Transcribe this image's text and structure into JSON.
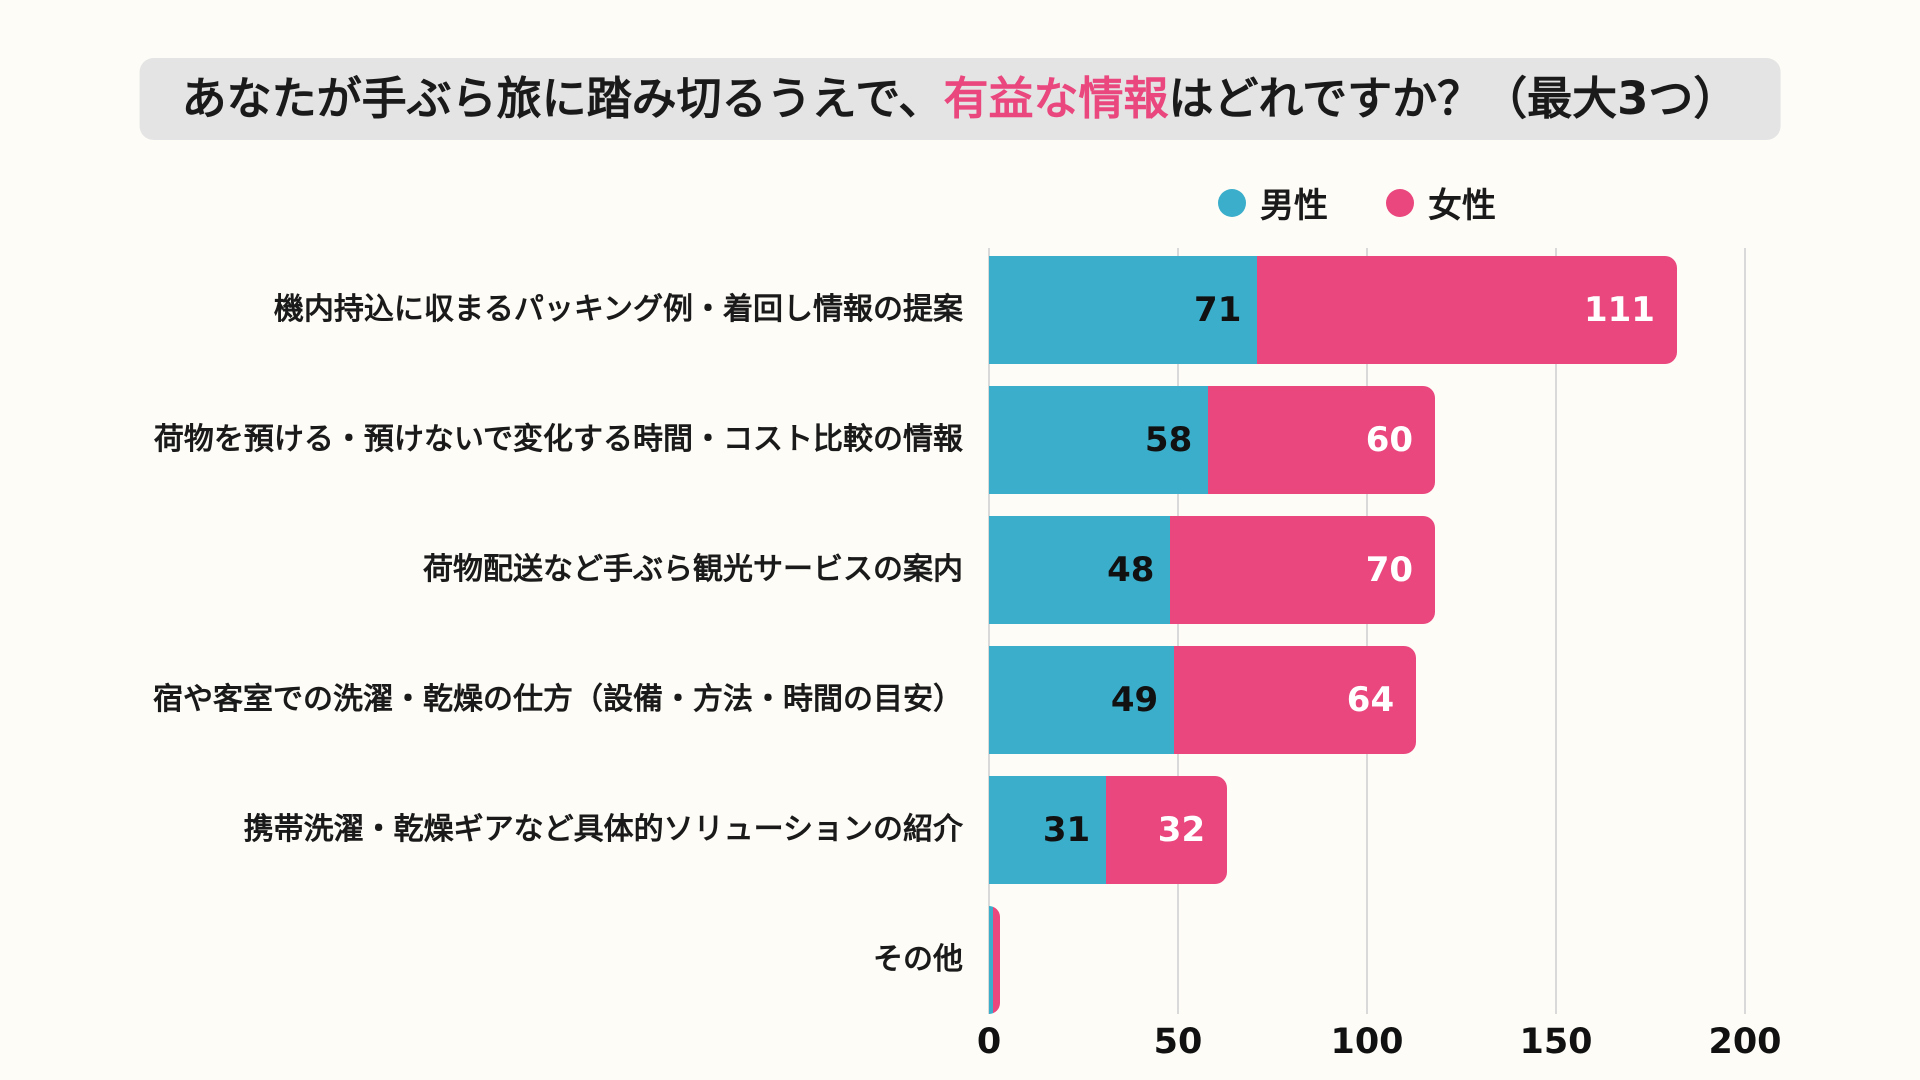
{
  "title": {
    "pre": "あなたが手ぶら旅に踏み切るうえで、",
    "highlight": "有益な情報",
    "post": "はどれですか？（最大3つ）"
  },
  "legend": [
    {
      "label": "男性",
      "color": "#3aaecb"
    },
    {
      "label": "女性",
      "color": "#e9477e"
    }
  ],
  "colors": {
    "male_bar": "#3aaecb",
    "female_bar": "#e9477e",
    "title_background": "#e4e4e4",
    "accent_pink": "#e9477e",
    "gridline": "#d9d9d9",
    "page_background": "#fdfcf7"
  },
  "chart_data": {
    "type": "bar",
    "orientation": "horizontal",
    "stacked": true,
    "title": "あなたが手ぶら旅に踏み切るうえで、有益な情報はどれですか？（最大3つ）",
    "categories": [
      "機内持込に収まるパッキング例・着回し情報の提案",
      "荷物を預ける・預けないで変化する時間・コスト比較の情報",
      "荷物配送など手ぶら観光サービスの案内",
      "宿や客室での洗濯・乾燥の仕方（設備・方法・時間の目安）",
      "携帯洗濯・乾燥ギアなど具体的ソリューションの紹介",
      "その他"
    ],
    "series": [
      {
        "name": "男性",
        "color": "#3aaecb",
        "values": [
          71,
          58,
          48,
          49,
          31,
          1
        ]
      },
      {
        "name": "女性",
        "color": "#e9477e",
        "values": [
          111,
          60,
          70,
          64,
          32,
          2
        ]
      }
    ],
    "value_labels_visible": [
      true,
      true,
      true,
      true,
      true,
      false
    ],
    "xlabel": "",
    "ylabel": "",
    "xlim": [
      0,
      200
    ],
    "xticks": [
      0,
      50,
      100,
      150,
      200
    ],
    "grid": "vertical",
    "legend_position": "top"
  }
}
